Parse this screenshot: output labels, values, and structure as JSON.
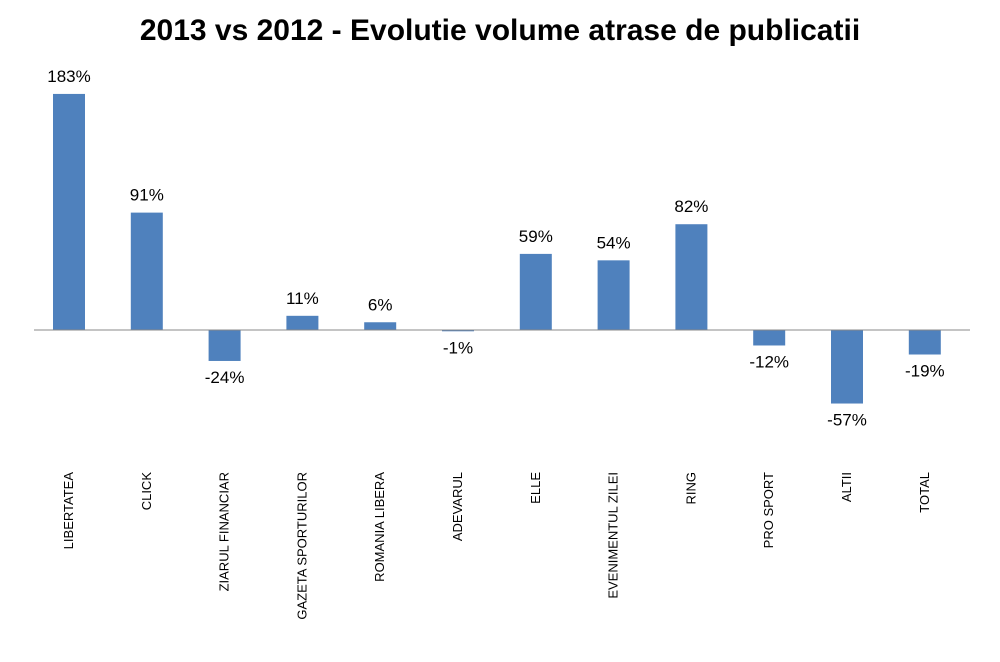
{
  "chart_data": {
    "type": "bar",
    "title": "2013 vs 2012  - Evolutie volume atrase de publicatii",
    "xlabel": "",
    "ylabel": "",
    "categories": [
      "LIBERTATEA",
      "CLICK",
      "ZIARUL FINANCIAR",
      "GAZETA SPORTURILOR",
      "ROMANIA LIBERA",
      "ADEVARUL",
      "ELLE",
      "EVENIMENTUL ZILEI",
      "RING",
      "PRO SPORT",
      "ALTII",
      "TOTAL"
    ],
    "values": [
      183,
      91,
      -24,
      11,
      6,
      -1,
      59,
      54,
      82,
      -12,
      -57,
      -19
    ],
    "value_labels": [
      "183%",
      "91%",
      "-24%",
      "11%",
      "6%",
      "-1%",
      "59%",
      "54%",
      "82%",
      "-12%",
      "-57%",
      "-19%"
    ],
    "unit": "%",
    "bar_color": "#4F81BD",
    "axis_color": "#888888",
    "grid": false,
    "legend": "none"
  }
}
